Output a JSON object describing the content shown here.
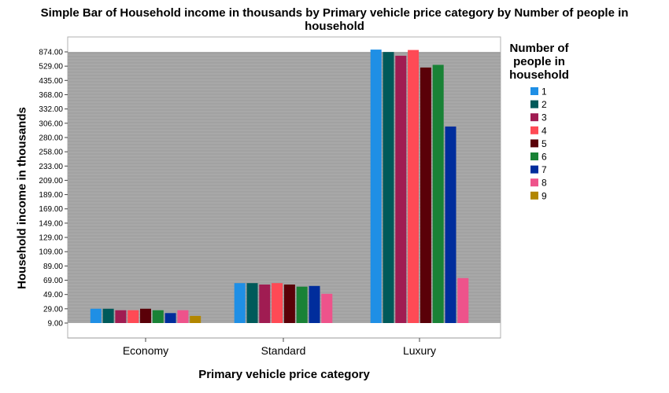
{
  "chart_data": {
    "type": "bar",
    "title_lines": [
      "Simple Bar of Household income in thousands by Primary vehicle price category by Number of people in",
      "household"
    ],
    "xlabel": "Primary vehicle price category",
    "ylabel": "Household income in thousands",
    "categories": [
      "Economy",
      "Standard",
      "Luxury"
    ],
    "y_ticks": [
      "874.00",
      "529.00",
      "435.00",
      "368.00",
      "332.00",
      "306.00",
      "280.00",
      "258.00",
      "233.00",
      "209.00",
      "189.00",
      "169.00",
      "149.00",
      "129.00",
      "109.00",
      "89.00",
      "69.00",
      "49.00",
      "29.00",
      "9.00"
    ],
    "legend_title_lines": [
      "Number of",
      "people in",
      "household"
    ],
    "legend_placement": "right",
    "grid": true,
    "series": [
      {
        "name": "1",
        "color": "#1f8fe5",
        "values": [
          29.0,
          65.0,
          930.0
        ]
      },
      {
        "name": "2",
        "color": "#005a5a",
        "values": [
          29.0,
          65.0,
          870.0
        ]
      },
      {
        "name": "3",
        "color": "#a01c52",
        "values": [
          27.0,
          63.0,
          780.0
        ]
      },
      {
        "name": "4",
        "color": "#ff4a55",
        "values": [
          27.0,
          65.0,
          920.0
        ]
      },
      {
        "name": "5",
        "color": "#5a0008",
        "values": [
          29.0,
          63.0,
          520.0
        ]
      },
      {
        "name": "6",
        "color": "#198236",
        "values": [
          27.0,
          60.0,
          560.0
        ]
      },
      {
        "name": "7",
        "color": "#002d9c",
        "values": [
          23.0,
          61.0,
          300.0
        ]
      },
      {
        "name": "8",
        "color": "#ee538b",
        "values": [
          27.0,
          50.0,
          72.0
        ]
      },
      {
        "name": "9",
        "color": "#b28600",
        "values": [
          19.0,
          null,
          null
        ]
      }
    ]
  }
}
